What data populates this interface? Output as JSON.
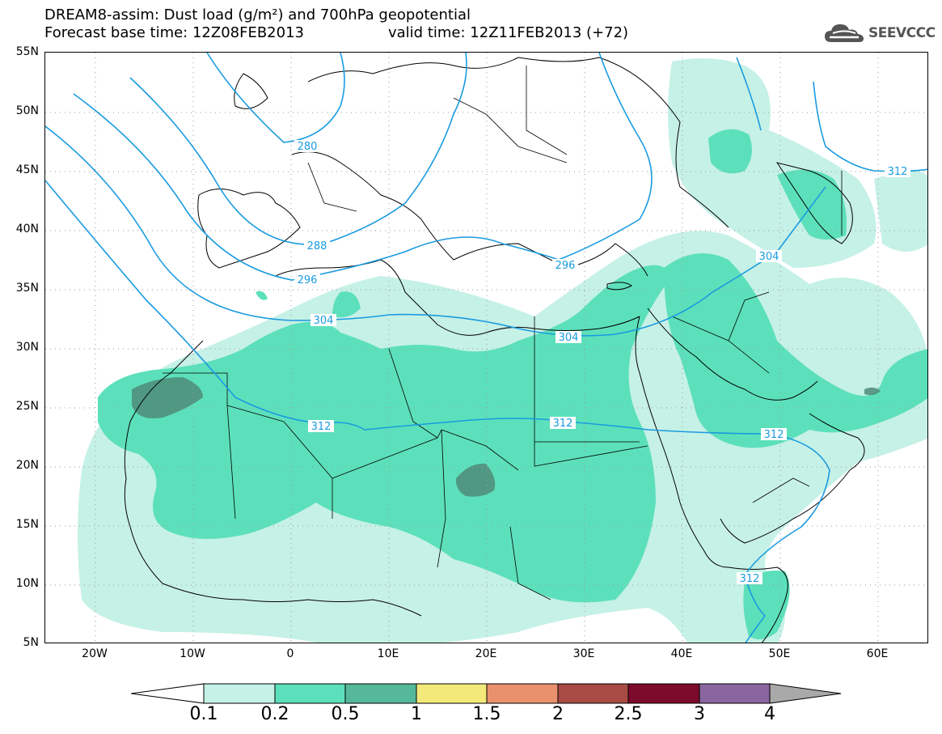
{
  "header": {
    "title_line1": "DREAM8-assim: Dust load (g/m²) and 700hPa geopotential",
    "title_line2": "Forecast base time: 12Z08FEB2013",
    "valid_time": "valid time: 12Z11FEB2013 (+72)",
    "logo_text": "SEEVCCC",
    "logo_icon": "cloud-logo-icon"
  },
  "axes": {
    "lat_labels": [
      "55N",
      "50N",
      "45N",
      "40N",
      "35N",
      "30N",
      "25N",
      "20N",
      "15N",
      "10N",
      "5N"
    ],
    "lon_labels": [
      "20W",
      "10W",
      "0",
      "10E",
      "20E",
      "30E",
      "40E",
      "50E",
      "60E"
    ]
  },
  "contours": {
    "labels": [
      "280",
      "288",
      "296",
      "304",
      "304",
      "304",
      "312",
      "312",
      "312",
      "312",
      "312",
      "296"
    ]
  },
  "colorbar": {
    "labels": [
      "0.1",
      "0.2",
      "0.5",
      "1",
      "1.5",
      "2",
      "2.5",
      "3",
      "4"
    ],
    "colors": [
      "#c6f1e6",
      "#5ce0bb",
      "#55b899",
      "#f3e97a",
      "#e9916c",
      "#a84c43",
      "#7d0b2b",
      "#8a66a0"
    ],
    "under_color": "#ffffff",
    "over_color": "#a9a9a9"
  },
  "colors": {
    "light_dust": "#c6f1e6",
    "mid_dust": "#5ce0bb",
    "dark_dust": "#55b899",
    "darkest_dust": "#4d8b78",
    "contour": "#1a9be0",
    "border": "#000000",
    "gridline": "#888888"
  }
}
